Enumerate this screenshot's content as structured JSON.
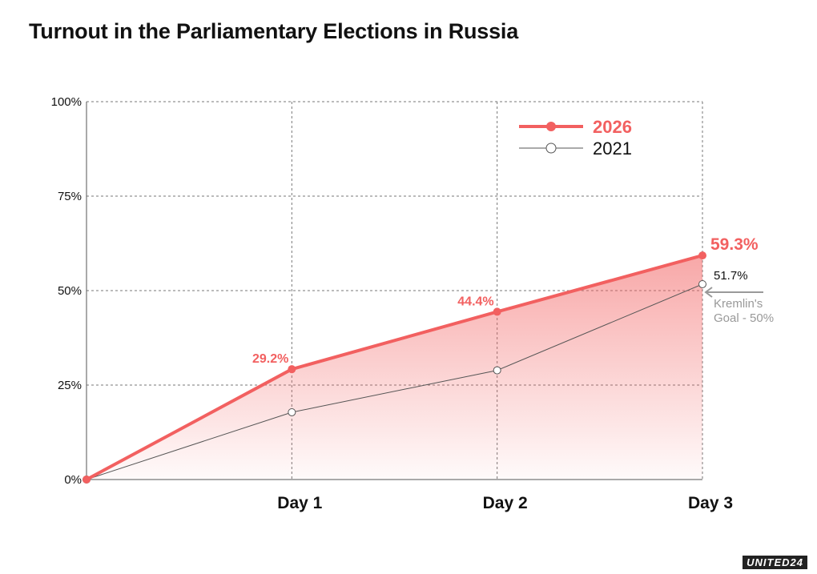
{
  "title": "Turnout in the Parliamentary Elections in Russia",
  "brand": "UNITED24",
  "colors": {
    "primary": "#f26060",
    "secondary": "#555555",
    "goal": "#999999"
  },
  "chart_data": {
    "type": "line",
    "title": "Turnout in the Parliamentary Elections in Russia",
    "x": [
      "",
      "Day 1",
      "Day 2",
      "Day 3"
    ],
    "ylim": [
      0,
      100
    ],
    "yticks": [
      "0%",
      "25%",
      "50%",
      "75%",
      "100%"
    ],
    "ytick_values": [
      0,
      25,
      50,
      75,
      100
    ],
    "grid": true,
    "legend_position": "top-right",
    "series": [
      {
        "name": "2026",
        "values": [
          0,
          29.2,
          44.4,
          59.3
        ],
        "labels": [
          "",
          "29.2%",
          "44.4%",
          "59.3%"
        ],
        "color": "#f26060",
        "area_fill": true
      },
      {
        "name": "2021",
        "values": [
          0,
          17.8,
          28.9,
          51.7
        ],
        "labels": [
          "",
          "",
          "",
          "51.7%"
        ],
        "color": "#555555"
      }
    ],
    "annotations": [
      {
        "text_line1": "Kremlin's",
        "text_line2": "Goal - 50%",
        "value": 50
      }
    ]
  }
}
